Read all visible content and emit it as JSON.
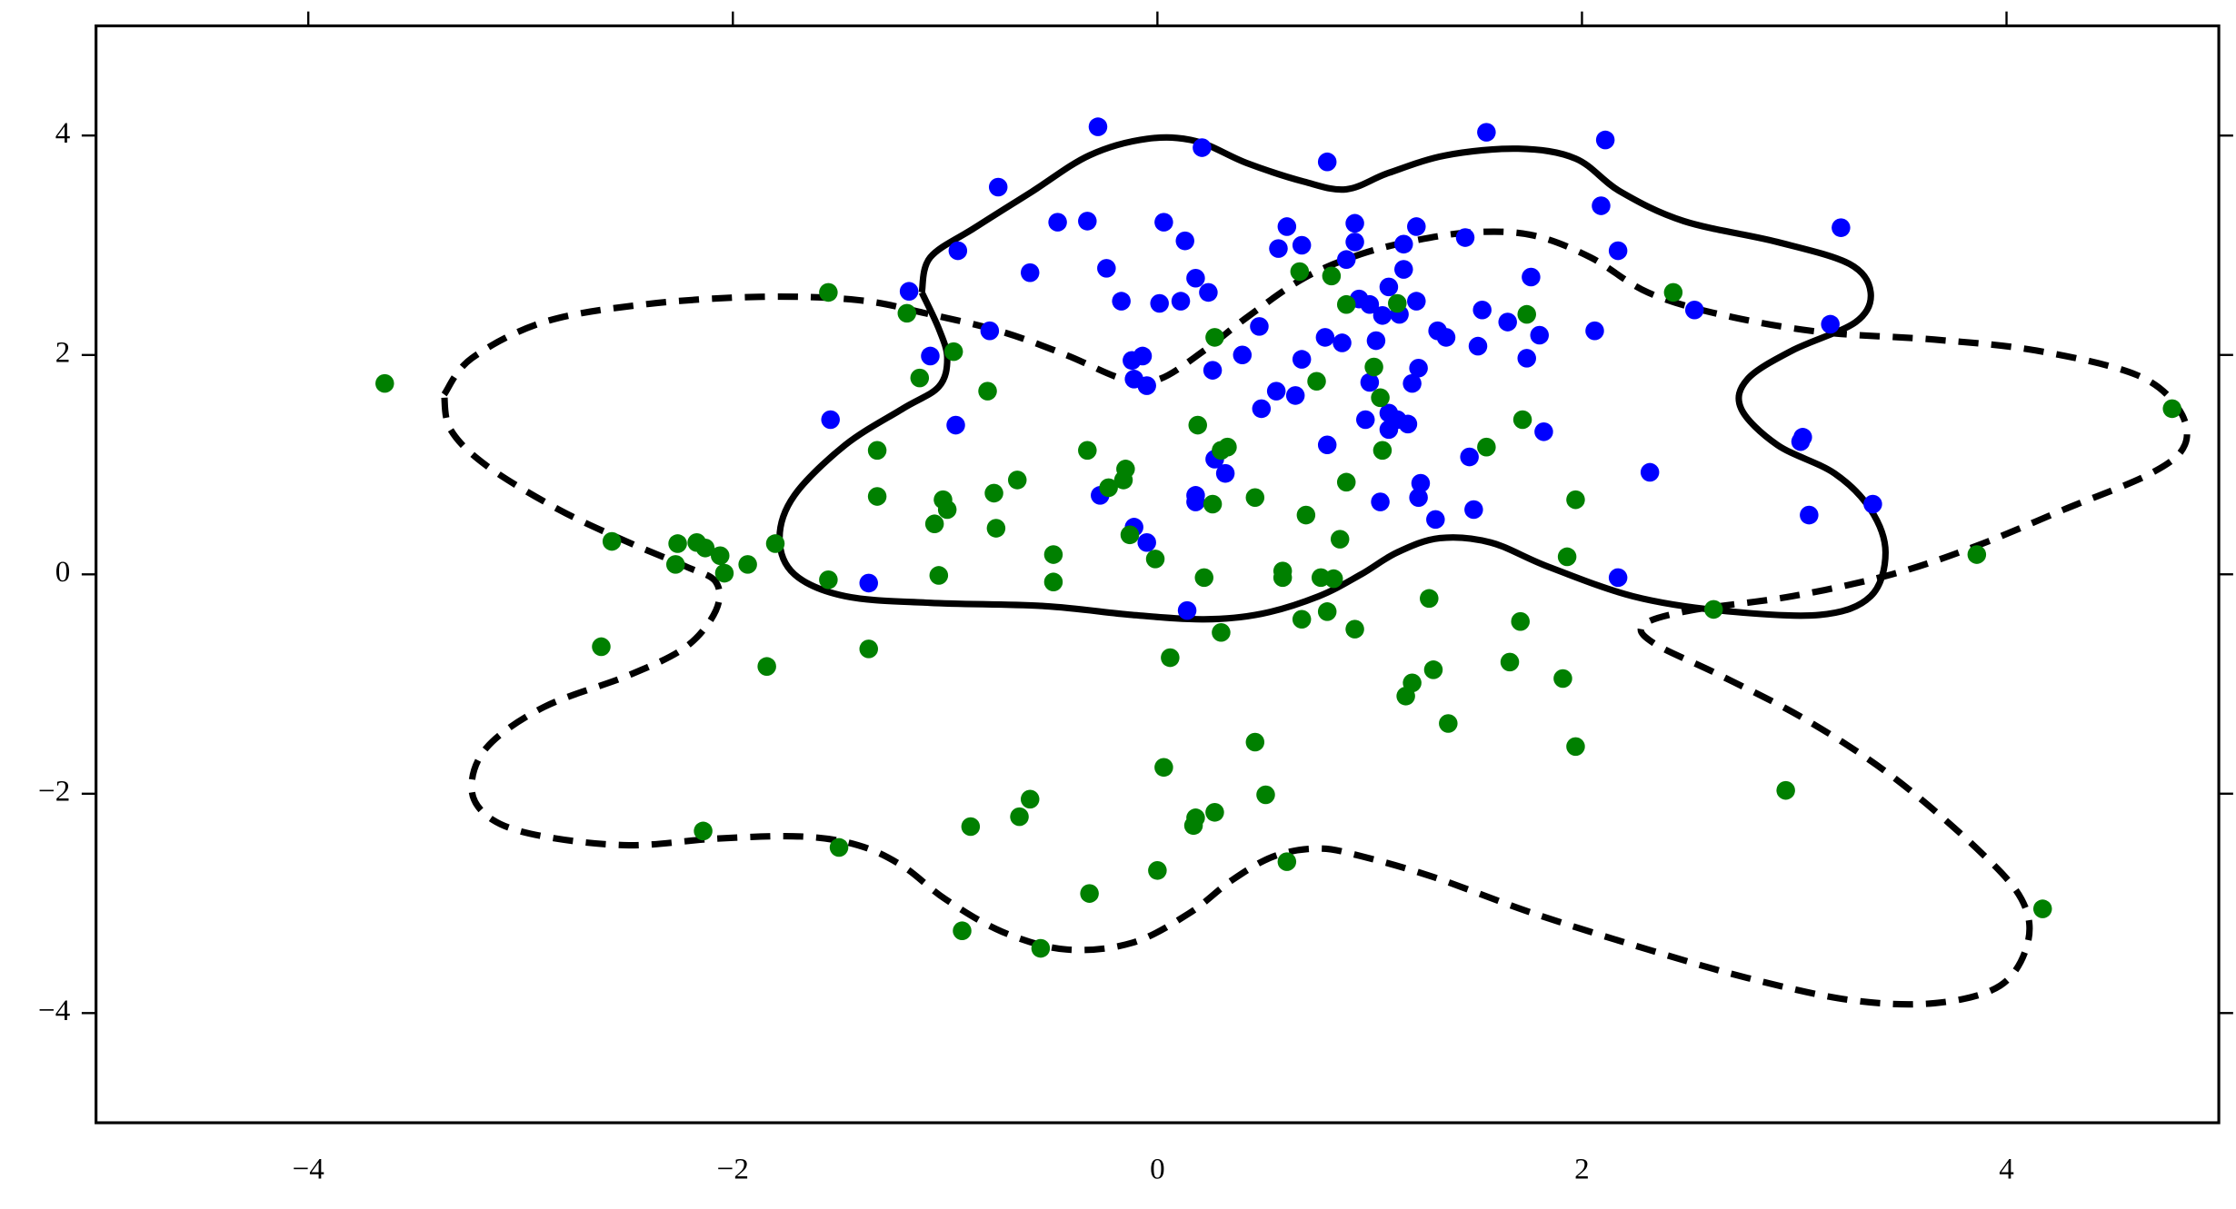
{
  "chart_data": {
    "type": "scatter",
    "xlim": [
      -5,
      5
    ],
    "ylim": [
      -5,
      5
    ],
    "xticks": [
      {
        "value": -4,
        "label": "−4"
      },
      {
        "value": -2,
        "label": "−2"
      },
      0,
      2,
      4
    ],
    "yticks": [
      {
        "value": -4,
        "label": "−4"
      },
      {
        "value": -2,
        "label": "−2"
      },
      0,
      2,
      4
    ],
    "series": [
      {
        "color": "#0000ff",
        "x": [
          -0.28,
          -0.75,
          -0.47,
          -0.33,
          -0.94,
          -0.6,
          -0.24,
          0.03,
          0.13,
          0.21,
          0.18,
          0.24,
          0.11,
          -0.17,
          0.01,
          0.61,
          0.68,
          0.57,
          0.8,
          0.93,
          0.93,
          0.89,
          1.16,
          1.22,
          1.16,
          1.09,
          1.45,
          1.55,
          2.11,
          2.09,
          2.17,
          1.76,
          3.22,
          2.53,
          3.17,
          2.06,
          1.8,
          1.74,
          1.65,
          1.53,
          1.51,
          1.32,
          1.36,
          1.22,
          1.14,
          1.06,
          1.03,
          0.95,
          1.0,
          0.79,
          0.87,
          0.68,
          0.4,
          0.26,
          0.48,
          -0.12,
          -0.07,
          -0.11,
          -0.05,
          1.0,
          1.2,
          1.23,
          1.09,
          1.13,
          1.18,
          1.09,
          0.98,
          0.56,
          0.65,
          0.49,
          0.8,
          1.82,
          1.47,
          2.32,
          3.04,
          3.03,
          3.07,
          3.37,
          2.17,
          1.23,
          1.24,
          1.31,
          1.49,
          1.05,
          0.27,
          0.32,
          0.18,
          0.18,
          -0.27,
          -0.11,
          -0.05,
          0.14,
          -1.36,
          -1.54,
          -1.07,
          -1.17,
          -0.95,
          -0.79
        ],
        "values": [
          4.08,
          3.53,
          3.21,
          3.22,
          2.95,
          2.75,
          2.79,
          3.21,
          3.04,
          3.89,
          2.7,
          2.57,
          2.49,
          2.49,
          2.47,
          3.17,
          3.0,
          2.97,
          3.76,
          3.2,
          3.03,
          2.87,
          3.01,
          3.17,
          2.78,
          2.62,
          3.07,
          4.03,
          3.96,
          3.36,
          2.95,
          2.71,
          3.16,
          2.41,
          2.28,
          2.22,
          2.18,
          1.97,
          2.3,
          2.41,
          2.08,
          2.22,
          2.16,
          2.49,
          2.37,
          2.36,
          2.13,
          2.51,
          2.46,
          2.16,
          2.11,
          1.96,
          2.0,
          1.86,
          2.26,
          1.95,
          1.99,
          1.78,
          1.72,
          1.75,
          1.74,
          1.88,
          1.47,
          1.41,
          1.37,
          1.32,
          1.41,
          1.67,
          1.63,
          1.51,
          1.18,
          1.3,
          1.07,
          0.93,
          1.25,
          1.21,
          0.54,
          0.64,
          -0.03,
          0.7,
          0.83,
          0.5,
          0.59,
          0.66,
          1.05,
          0.92,
          0.72,
          0.66,
          0.72,
          0.43,
          0.29,
          -0.33,
          -0.08,
          1.41,
          1.99,
          2.58,
          1.36,
          2.22
        ]
      },
      {
        "color": "#008000",
        "x": [
          -3.64,
          -1.55,
          -1.18,
          -1.12,
          -0.96,
          -0.8,
          -1.32,
          -1.32,
          -1.01,
          -0.99,
          -1.05,
          -0.77,
          -0.76,
          -0.66,
          -0.33,
          -0.15,
          -0.16,
          -0.23,
          -0.13,
          -0.01,
          -0.49,
          -0.49,
          -1.03,
          -1.8,
          -1.93,
          -2.04,
          -2.06,
          -2.17,
          -2.13,
          -2.26,
          -2.27,
          -2.57,
          -1.55,
          -2.62,
          -1.84,
          -1.36,
          -2.14,
          -1.5,
          -0.92,
          -0.55,
          -0.88,
          -0.65,
          -0.6,
          -0.32,
          0.0,
          0.03,
          0.17,
          0.18,
          0.27,
          0.51,
          0.46,
          0.61,
          0.06,
          0.3,
          0.22,
          0.19,
          0.33,
          0.3,
          0.26,
          0.46,
          0.27,
          0.67,
          0.82,
          0.89,
          0.75,
          1.02,
          1.05,
          1.13,
          1.06,
          0.89,
          0.7,
          0.86,
          0.59,
          0.59,
          0.77,
          0.83,
          0.68,
          0.8,
          0.93,
          1.28,
          1.3,
          1.2,
          1.17,
          1.37,
          1.66,
          1.71,
          1.91,
          1.97,
          1.93,
          1.97,
          1.72,
          1.55,
          1.74,
          2.43,
          2.62,
          2.96,
          3.86,
          4.17,
          4.78
        ],
        "values": [
          1.74,
          2.57,
          2.38,
          1.79,
          2.03,
          1.67,
          1.13,
          0.71,
          0.68,
          0.59,
          0.46,
          0.74,
          0.42,
          0.86,
          1.13,
          0.96,
          0.86,
          0.79,
          0.36,
          0.14,
          0.18,
          -0.07,
          -0.01,
          0.28,
          0.09,
          0.01,
          0.17,
          0.29,
          0.24,
          0.28,
          0.09,
          0.3,
          -0.05,
          -0.66,
          -0.84,
          -0.68,
          -2.34,
          -2.49,
          -3.25,
          -3.41,
          -2.3,
          -2.21,
          -2.05,
          -2.91,
          -2.7,
          -1.76,
          -2.29,
          -2.22,
          -2.17,
          -2.01,
          -1.53,
          -2.62,
          -0.76,
          -0.53,
          -0.03,
          1.36,
          1.16,
          1.13,
          0.64,
          0.7,
          2.16,
          2.76,
          2.72,
          2.46,
          1.76,
          1.89,
          1.61,
          2.47,
          1.13,
          0.84,
          0.54,
          0.32,
          0.03,
          -0.03,
          -0.03,
          -0.04,
          -0.41,
          -0.34,
          -0.5,
          -0.22,
          -0.87,
          -0.99,
          -1.11,
          -1.36,
          -0.8,
          -0.43,
          -0.95,
          -1.57,
          0.16,
          0.68,
          1.41,
          1.16,
          2.37,
          2.57,
          -0.32,
          -1.97,
          0.18,
          -3.05,
          1.51
        ]
      }
    ],
    "lines": [
      {
        "style": "solid",
        "color": "#000000",
        "x": [
          -1.11,
          -1.07,
          -0.86,
          -0.59,
          -0.32,
          -0.05,
          0.18,
          0.42,
          0.69,
          0.89,
          1.09,
          1.36,
          1.7,
          1.97,
          2.18,
          2.48,
          2.92,
          3.26,
          3.36,
          3.29,
          2.99,
          2.78,
          2.75,
          2.92,
          3.19,
          3.36,
          3.43,
          3.36,
          3.12,
          2.65,
          2.24,
          1.84,
          1.57,
          1.33,
          1.13,
          0.96,
          0.76,
          0.49,
          0.22,
          -0.12,
          -0.53,
          -1.07,
          -1.47,
          -1.71,
          -1.78,
          -1.71,
          -1.47,
          -1.2,
          -1.03,
          -0.99,
          -1.03,
          -1.11
        ],
        "values": [
          2.57,
          2.89,
          3.16,
          3.49,
          3.82,
          3.97,
          3.95,
          3.75,
          3.58,
          3.51,
          3.66,
          3.82,
          3.88,
          3.79,
          3.49,
          3.22,
          3.03,
          2.83,
          2.57,
          2.3,
          2.04,
          1.78,
          1.51,
          1.18,
          0.92,
          0.59,
          0.2,
          -0.2,
          -0.37,
          -0.33,
          -0.2,
          0.07,
          0.29,
          0.33,
          0.2,
          0.0,
          -0.2,
          -0.36,
          -0.41,
          -0.37,
          -0.29,
          -0.26,
          -0.2,
          0.0,
          0.33,
          0.72,
          1.18,
          1.51,
          1.71,
          1.97,
          2.24,
          2.57
        ]
      },
      {
        "style": "dashed",
        "color": "#000000",
        "x": [
          -3.36,
          -3.23,
          -2.89,
          -2.42,
          -1.88,
          -1.41,
          -1.07,
          -0.73,
          -0.43,
          -0.16,
          0.01,
          0.22,
          0.42,
          0.69,
          0.96,
          1.23,
          1.5,
          1.77,
          2.04,
          2.31,
          2.65,
          3.12,
          3.66,
          4.14,
          4.61,
          4.81,
          4.84,
          4.68,
          4.27,
          3.86,
          3.46,
          2.99,
          2.51,
          2.29,
          2.34,
          2.65,
          3.05,
          3.46,
          3.86,
          4.07,
          4.1,
          3.97,
          3.66,
          3.26,
          2.78,
          2.31,
          1.77,
          1.3,
          0.96,
          0.76,
          0.55,
          0.35,
          0.15,
          -0.12,
          -0.43,
          -0.73,
          -1.0,
          -1.2,
          -1.41,
          -1.68,
          -2.08,
          -2.49,
          -2.89,
          -3.13,
          -3.23,
          -3.16,
          -2.89,
          -2.49,
          -2.22,
          -2.08,
          -2.08,
          -2.22,
          -2.49,
          -2.82,
          -3.16,
          -3.33,
          -3.36
        ],
        "values": [
          1.64,
          1.97,
          2.3,
          2.46,
          2.53,
          2.5,
          2.37,
          2.21,
          2.0,
          1.78,
          1.78,
          2.04,
          2.34,
          2.7,
          2.92,
          3.05,
          3.12,
          3.09,
          2.89,
          2.57,
          2.37,
          2.21,
          2.14,
          2.04,
          1.82,
          1.51,
          1.18,
          0.92,
          0.59,
          0.26,
          0.0,
          -0.2,
          -0.33,
          -0.46,
          -0.63,
          -0.92,
          -1.32,
          -1.84,
          -2.5,
          -2.96,
          -3.36,
          -3.75,
          -3.91,
          -3.88,
          -3.68,
          -3.42,
          -3.09,
          -2.76,
          -2.57,
          -2.5,
          -2.57,
          -2.79,
          -3.09,
          -3.36,
          -3.42,
          -3.26,
          -2.96,
          -2.66,
          -2.47,
          -2.39,
          -2.41,
          -2.47,
          -2.39,
          -2.24,
          -1.97,
          -1.58,
          -1.21,
          -0.92,
          -0.66,
          -0.33,
          -0.07,
          0.07,
          0.29,
          0.59,
          0.99,
          1.32,
          1.64
        ]
      }
    ]
  }
}
